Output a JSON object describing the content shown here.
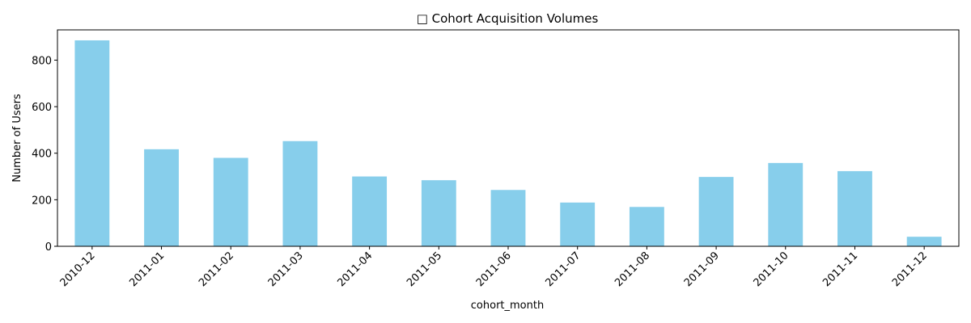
{
  "chart_data": {
    "type": "bar",
    "title": "□ Cohort Acquisition Volumes",
    "xlabel": "cohort_month",
    "ylabel": "Number of Users",
    "categories": [
      "2010-12",
      "2011-01",
      "2011-02",
      "2011-03",
      "2011-04",
      "2011-05",
      "2011-06",
      "2011-07",
      "2011-08",
      "2011-09",
      "2011-10",
      "2011-11",
      "2011-12"
    ],
    "values": [
      885,
      417,
      380,
      452,
      300,
      284,
      242,
      188,
      169,
      298,
      358,
      323,
      41
    ],
    "ylim": [
      0,
      930
    ],
    "yticks": [
      0,
      200,
      400,
      600,
      800
    ],
    "bar_color": "#87CEEB",
    "grid": false,
    "legend": "none"
  }
}
